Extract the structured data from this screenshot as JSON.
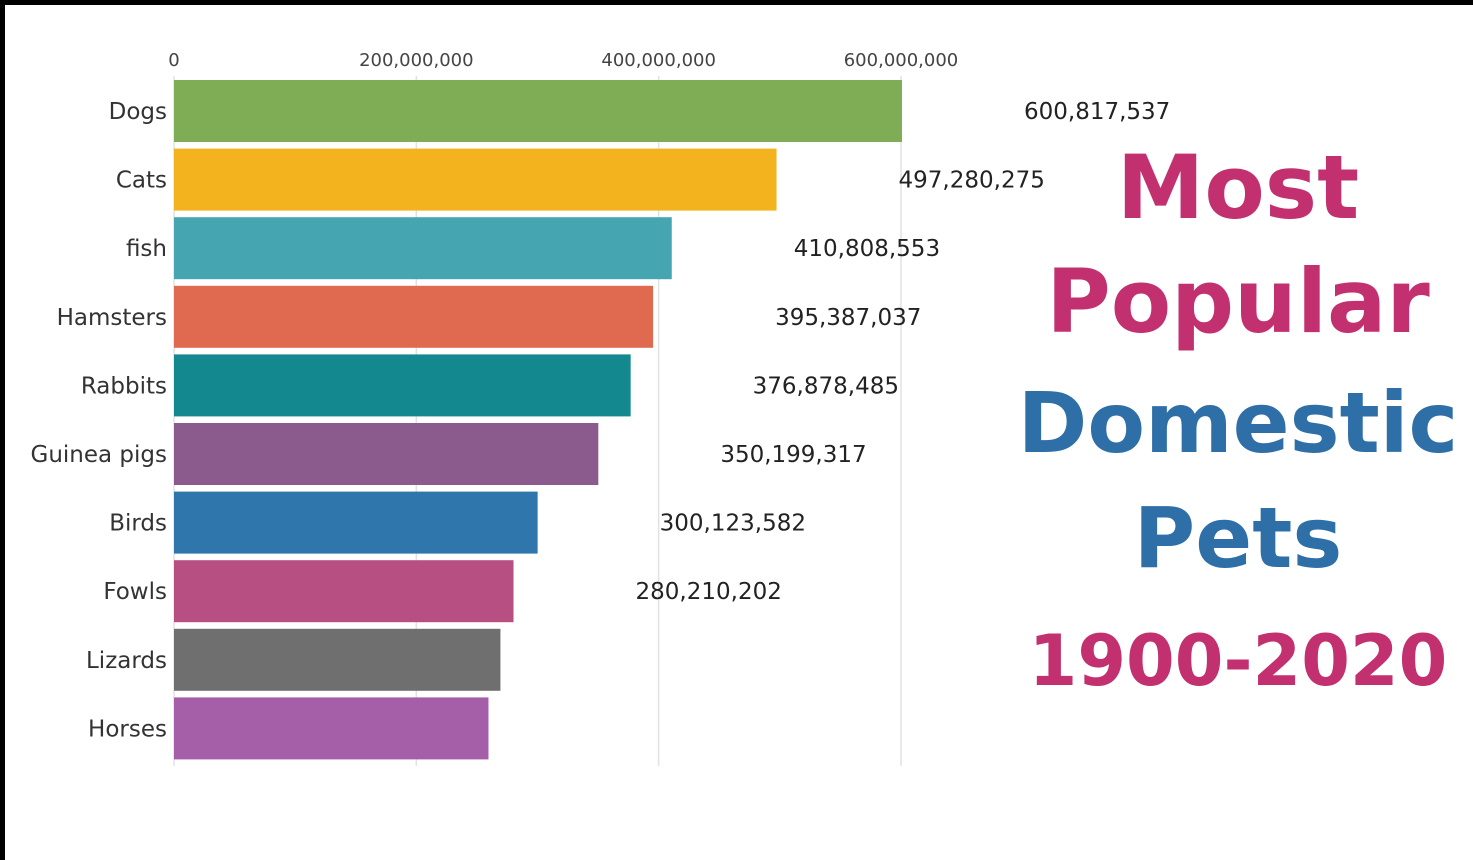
{
  "chart_data": {
    "type": "barh",
    "title_lines": [
      {
        "text": "Most",
        "color": "#c2306f"
      },
      {
        "text": "Popular",
        "color": "#c2306f"
      },
      {
        "text": "Domestic",
        "color": "#2f6fa7"
      },
      {
        "text": "Pets",
        "color": "#2f6fa7"
      },
      {
        "text": "1900-2020",
        "color": "#c2306f"
      }
    ],
    "categories": [
      "Dogs",
      "Cats",
      "fish",
      "Hamsters",
      "Rabbits",
      "Guinea pigs",
      "Birds",
      "Fowls",
      "Lizards",
      "Horses"
    ],
    "values": [
      600817537,
      497280275,
      410808553,
      395387037,
      376878485,
      350199317,
      300123582,
      280210202,
      269400000,
      259536000
    ],
    "value_labels": [
      "600,817,537",
      "497,280,275",
      "410,808,553",
      "395,387,037",
      "376,878,485",
      "350,199,317",
      "300,123,582",
      "280,210,202",
      null,
      null
    ],
    "colors": [
      "#7fad55",
      "#f3b31f",
      "#45a6b1",
      "#e06a4f",
      "#13888e",
      "#8b5b8e",
      "#2f76ad",
      "#b74f83",
      "#6f6f6f",
      "#a55fa9"
    ],
    "xlim": [
      0,
      600000000
    ],
    "xticks": [
      0,
      {
        "value": 200000000,
        "label": "200,000,000"
      },
      {
        "value": 400000000,
        "label": "400,000,000"
      },
      {
        "value": 600000000,
        "label": "600,000,000"
      }
    ],
    "grid": true
  }
}
